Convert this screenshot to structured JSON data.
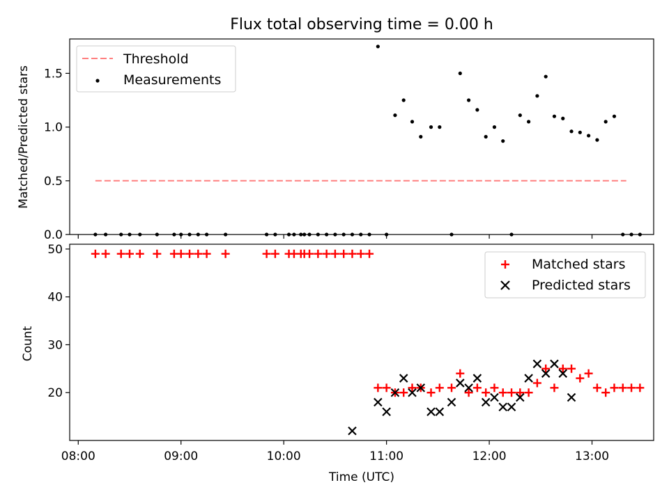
{
  "title": "Flux total observing time = 0.00 h",
  "chart_data": [
    {
      "type": "scatter",
      "ylabel": "Matched/Predicted stars",
      "xlim": [
        "07:55",
        "13:36"
      ],
      "ylim": [
        0,
        1.82
      ],
      "yticks": [
        "0.0",
        "0.5",
        "1.0",
        "1.5"
      ],
      "grid": false,
      "legend_position": "top-left",
      "threshold": {
        "name": "Threshold",
        "value": 0.5,
        "x_start": "08:10",
        "x_end": "13:20",
        "color": "#ff7f7f",
        "style": "dashed"
      },
      "series": [
        {
          "name": "Measurements",
          "color": "#000000",
          "marker": "dot",
          "x": [
            "08:10",
            "08:16",
            "08:25",
            "08:30",
            "08:36",
            "08:46",
            "08:56",
            "09:00",
            "09:05",
            "09:10",
            "09:15",
            "09:26",
            "09:50",
            "09:55",
            "10:03",
            "10:06",
            "10:10",
            "10:12",
            "10:15",
            "10:20",
            "10:25",
            "10:30",
            "10:35",
            "10:40",
            "10:45",
            "10:50",
            "10:55",
            "11:00",
            "11:05",
            "11:10",
            "11:15",
            "11:20",
            "11:26",
            "11:31",
            "11:38",
            "11:43",
            "11:48",
            "11:53",
            "11:58",
            "12:03",
            "12:08",
            "12:13",
            "12:18",
            "12:23",
            "12:28",
            "12:33",
            "12:38",
            "12:43",
            "12:48",
            "12:53",
            "12:58",
            "13:03",
            "13:08",
            "13:13",
            "13:18",
            "13:23",
            "13:28"
          ],
          "y": [
            0,
            0,
            0,
            0,
            0,
            0,
            0,
            0,
            0,
            0,
            0,
            0,
            0,
            0,
            0,
            0,
            0,
            0,
            0,
            0,
            0,
            0,
            0,
            0,
            0,
            0,
            1.75,
            0,
            1.11,
            1.25,
            1.05,
            0.91,
            1.0,
            1.0,
            0,
            1.5,
            1.25,
            1.16,
            0.91,
            1.0,
            0.87,
            0,
            1.11,
            1.05,
            1.29,
            1.47,
            1.1,
            1.08,
            0.96,
            0.95,
            0.92,
            0.88,
            1.05,
            1.1,
            0,
            0,
            0
          ]
        }
      ]
    },
    {
      "type": "scatter",
      "xlabel": "Time (UTC)",
      "ylabel": "Count",
      "xlim": [
        "07:55",
        "13:36"
      ],
      "ylim": [
        10,
        51
      ],
      "xticks": [
        "08:00",
        "09:00",
        "10:00",
        "11:00",
        "12:00",
        "13:00"
      ],
      "yticks": [
        "20",
        "30",
        "40",
        "50"
      ],
      "grid": false,
      "legend_position": "top-right",
      "series": [
        {
          "name": "Matched stars",
          "color": "#ff0000",
          "marker": "plus",
          "x": [
            "08:10",
            "08:16",
            "08:25",
            "08:30",
            "08:36",
            "08:46",
            "08:56",
            "09:00",
            "09:05",
            "09:10",
            "09:15",
            "09:26",
            "09:50",
            "09:55",
            "10:03",
            "10:06",
            "10:10",
            "10:12",
            "10:15",
            "10:20",
            "10:25",
            "10:30",
            "10:35",
            "10:40",
            "10:45",
            "10:50",
            "10:55",
            "11:00",
            "11:05",
            "11:10",
            "11:15",
            "11:20",
            "11:26",
            "11:31",
            "11:38",
            "11:43",
            "11:48",
            "11:53",
            "11:58",
            "12:03",
            "12:08",
            "12:13",
            "12:18",
            "12:23",
            "12:28",
            "12:33",
            "12:38",
            "12:43",
            "12:48",
            "12:53",
            "12:58",
            "13:03",
            "13:08",
            "13:13",
            "13:18",
            "13:23",
            "13:28"
          ],
          "y": [
            49,
            49,
            49,
            49,
            49,
            49,
            49,
            49,
            49,
            49,
            49,
            49,
            49,
            49,
            49,
            49,
            49,
            49,
            49,
            49,
            49,
            49,
            49,
            49,
            49,
            49,
            21,
            21,
            20,
            20,
            21,
            21,
            20,
            21,
            21,
            24,
            20,
            21,
            20,
            21,
            20,
            20,
            20,
            20,
            22,
            25,
            21,
            25,
            25,
            23,
            24,
            21,
            20,
            21,
            21,
            21,
            21
          ]
        },
        {
          "name": "Predicted stars",
          "color": "#000000",
          "marker": "x",
          "x": [
            "10:40",
            "10:55",
            "11:00",
            "11:05",
            "11:10",
            "11:15",
            "11:20",
            "11:26",
            "11:31",
            "11:38",
            "11:43",
            "11:48",
            "11:53",
            "11:58",
            "12:03",
            "12:08",
            "12:13",
            "12:18",
            "12:23",
            "12:28",
            "12:33",
            "12:38",
            "12:43",
            "12:48"
          ],
          "y": [
            12,
            18,
            16,
            20,
            23,
            20,
            21,
            16,
            16,
            18,
            22,
            21,
            23,
            18,
            19,
            17,
            17,
            19,
            23,
            26,
            24,
            26,
            24,
            19
          ]
        }
      ]
    }
  ]
}
